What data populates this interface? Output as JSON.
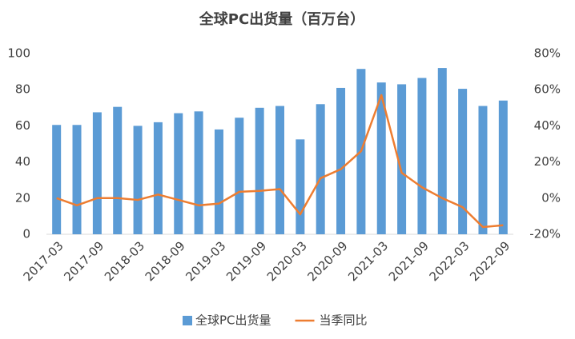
{
  "chart_data": {
    "type": "bar-line",
    "title": "全球PC出货量（百万台）",
    "categories": [
      "2017-03",
      null,
      "2017-09",
      null,
      "2018-03",
      null,
      "2018-09",
      null,
      "2019-03",
      null,
      "2019-09",
      null,
      "2020-03",
      null,
      "2020-09",
      null,
      "2021-03",
      null,
      "2021-09",
      null,
      "2022-03",
      null,
      "2022-09"
    ],
    "series": [
      {
        "name": "全球PC出货量",
        "type": "bar",
        "color": "#5b9bd5",
        "values": [
          60.5,
          60.5,
          67.5,
          70.5,
          60,
          62,
          67,
          68,
          58,
          64.5,
          70,
          71,
          52.5,
          72,
          81,
          91.5,
          84,
          83,
          86.5,
          92,
          80.5,
          71,
          74
        ]
      },
      {
        "name": "当季同比",
        "type": "line",
        "axis": "y2",
        "color": "#ed7d31",
        "values": [
          0,
          -4,
          0,
          0,
          -1,
          2,
          -1,
          -4,
          -3,
          3.5,
          4,
          5,
          -9,
          11,
          16,
          26,
          57,
          14,
          6,
          0,
          -5,
          -16,
          -15
        ]
      }
    ],
    "ylim": [
      0,
      100
    ],
    "yticks": [
      0,
      20,
      40,
      60,
      80,
      100
    ],
    "y2lim": [
      -20,
      80
    ],
    "y2ticks": [
      {
        "value": -20,
        "label": "-20%"
      },
      {
        "value": 0,
        "label": "0%"
      },
      {
        "value": 20,
        "label": "20%"
      },
      {
        "value": 40,
        "label": "40%"
      },
      {
        "value": 60,
        "label": "60%"
      },
      {
        "value": 80,
        "label": "80%"
      }
    ],
    "legend": "bottom"
  }
}
